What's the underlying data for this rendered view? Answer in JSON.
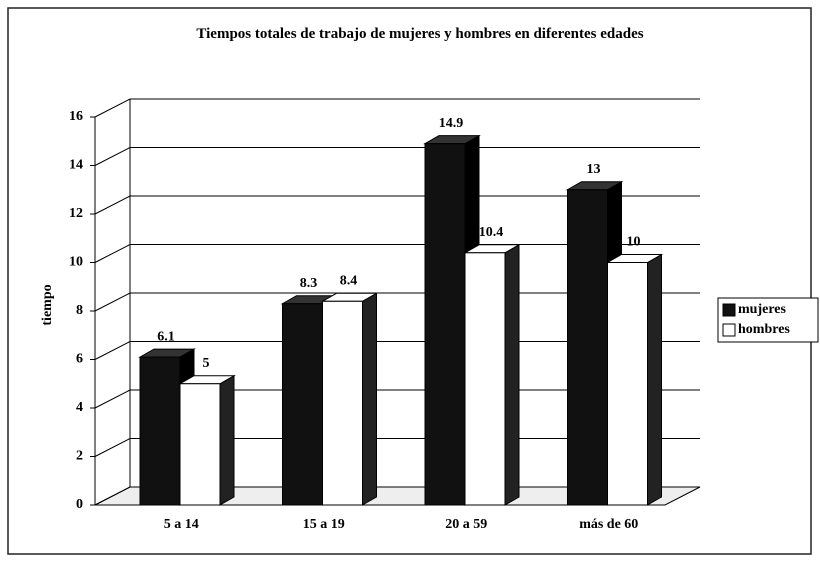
{
  "chart_data": {
    "type": "bar3d",
    "title": "Tiempos totales de trabajo de mujeres y hombres en diferentes edades",
    "y_label": "tiempo",
    "categories": [
      "5 a 14",
      "15 a 19",
      "20 a 59",
      "más de 60"
    ],
    "series": [
      {
        "name": "mujeres",
        "color": "#111111",
        "values": [
          6.1,
          8.3,
          14.9,
          13
        ]
      },
      {
        "name": "hombres",
        "color": "#ffffff",
        "values": [
          5,
          8.4,
          10.4,
          10
        ]
      }
    ],
    "ylim": [
      0,
      16
    ],
    "yticks": [
      0,
      2,
      4,
      6,
      8,
      10,
      12,
      14,
      16
    ],
    "grid": true,
    "legend": "right"
  }
}
